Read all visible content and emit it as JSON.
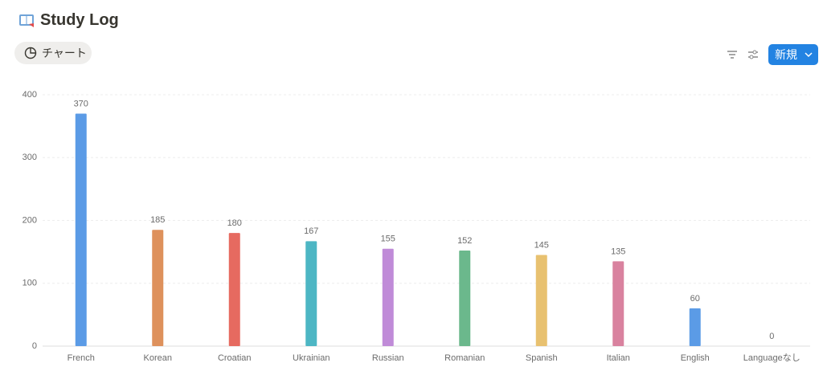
{
  "header": {
    "title": "Study Log",
    "view_tab": "チャート",
    "new_button": "新規"
  },
  "chart_data": {
    "type": "bar",
    "categories": [
      "French",
      "Korean",
      "Croatian",
      "Ukrainian",
      "Russian",
      "Romanian",
      "Spanish",
      "Italian",
      "English",
      "Languageなし"
    ],
    "values": [
      370,
      185,
      180,
      167,
      155,
      152,
      145,
      135,
      60,
      0
    ],
    "colors": [
      "#5b9be6",
      "#de915c",
      "#e66a60",
      "#4db6c4",
      "#c08bd8",
      "#6bb88c",
      "#e8c170",
      "#d9829f",
      "#5b9be6",
      "#b0b0b0"
    ],
    "ylim": [
      0,
      400
    ],
    "yticks": [
      0,
      100,
      200,
      300,
      400
    ],
    "grid": true
  }
}
